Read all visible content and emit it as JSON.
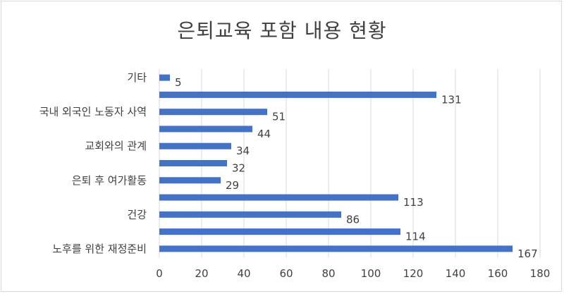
{
  "chart_data": {
    "type": "bar",
    "orientation": "horizontal",
    "title": "은퇴교육 포함 내용 현황",
    "categories": [
      "기타",
      "",
      "국내 외국인 노동자 사역",
      "",
      "교회와의 관계",
      "",
      "은퇴 후 여가활동",
      "",
      "건강",
      "",
      "노후를 위한 재정준비"
    ],
    "values": [
      5,
      131,
      51,
      44,
      34,
      32,
      29,
      113,
      86,
      114,
      167
    ],
    "xlim": [
      0,
      180
    ],
    "xticks": [
      0,
      20,
      40,
      60,
      80,
      100,
      120,
      140,
      160,
      180
    ],
    "grid": true,
    "bar_color": "#4472c4"
  }
}
